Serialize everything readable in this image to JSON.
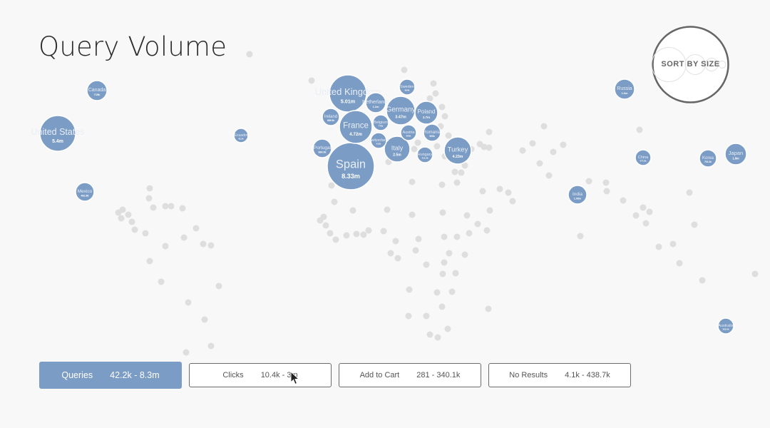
{
  "title": "Query Volume",
  "sort_button": {
    "label": "SORT BY SIZE"
  },
  "colors": {
    "bubble": "#7b9cc5",
    "dot": "#dedede",
    "background": "#f8f8f8"
  },
  "metrics": [
    {
      "label": "Queries",
      "range": "42.2k - 8.3m",
      "active": true
    },
    {
      "label": "Clicks",
      "range": "10.4k - 3m",
      "active": false
    },
    {
      "label": "Add to Cart",
      "range": "281 - 340.1k",
      "active": false
    },
    {
      "label": "No Results",
      "range": "4.1k - 438.7k",
      "active": false
    }
  ],
  "countries": [
    {
      "name": "United States",
      "value": "5.4m"
    },
    {
      "name": "Canada",
      "value": "715k"
    },
    {
      "name": "Mexico",
      "value": "462.8k"
    },
    {
      "name": "Ecuador",
      "value": "42.2k"
    },
    {
      "name": "United Kingdom",
      "value": "5.01m"
    },
    {
      "name": "Spain",
      "value": "8.33m"
    },
    {
      "name": "France",
      "value": "4.72m"
    },
    {
      "name": "Germany",
      "value": "3.47m"
    },
    {
      "name": "Italy",
      "value": "2.5m"
    },
    {
      "name": "Turkey",
      "value": "4.23m"
    },
    {
      "name": "Poland",
      "value": "2.7m"
    },
    {
      "name": "Netherlands",
      "value": "1.1m"
    },
    {
      "name": "Sweden",
      "value": "604k"
    },
    {
      "name": "Ireland",
      "value": "685.5k"
    },
    {
      "name": "Portugal",
      "value": "884.9k"
    },
    {
      "name": "Belgium",
      "value": "779k"
    },
    {
      "name": "Austria",
      "value": "660k"
    },
    {
      "name": "Switzerland",
      "value": "512k"
    },
    {
      "name": "Romania",
      "value": "900k"
    },
    {
      "name": "Hungary",
      "value": "411.3k"
    },
    {
      "name": "Russia",
      "value": "1.6m"
    },
    {
      "name": "China",
      "value": "477.8k"
    },
    {
      "name": "Korea",
      "value": "702.4k"
    },
    {
      "name": "Japan",
      "value": "1.8m"
    },
    {
      "name": "India",
      "value": "1.08m"
    },
    {
      "name": "Australia",
      "value": "362.6k"
    }
  ]
}
